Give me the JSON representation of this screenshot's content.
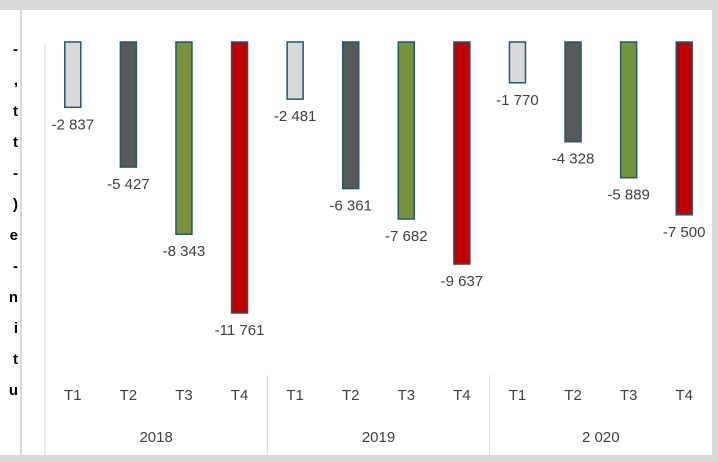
{
  "margin_text": [
    "-",
    ",",
    "t",
    "t",
    "-",
    ")",
    "e",
    "-",
    "n",
    "i",
    "t",
    "u"
  ],
  "chart_data": {
    "type": "bar",
    "categories": [
      "T1",
      "T2",
      "T3",
      "T4",
      "T1",
      "T2",
      "T3",
      "T4",
      "T1",
      "T2",
      "T3",
      "T4"
    ],
    "groups": [
      "2018",
      "2019",
      "2 020"
    ],
    "values": [
      -2837,
      -5427,
      -8343,
      -11761,
      -2481,
      -6361,
      -7682,
      -9637,
      -1770,
      -4328,
      -5889,
      -7500
    ],
    "value_labels": [
      "-2 837",
      "-5 427",
      "-8 343",
      "-11 761",
      "-2 481",
      "-6 361",
      "-7 682",
      "-9 637",
      "-1 770",
      "-4 328",
      "-5 889",
      "-7 500"
    ],
    "colors": [
      "#d9d9d9",
      "#595959",
      "#77933c",
      "#c00000"
    ],
    "edge_color": "#215868",
    "ylim": [
      -12000,
      0
    ]
  }
}
